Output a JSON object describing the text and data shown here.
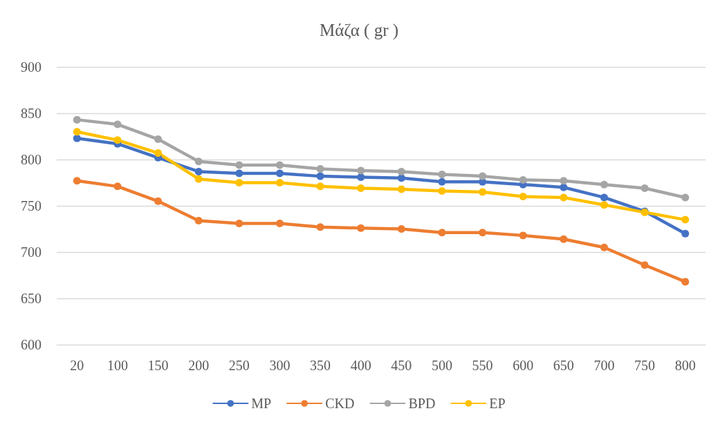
{
  "chart_data": {
    "type": "line",
    "title": "Μάζα ( gr )",
    "categories": [
      "20",
      "100",
      "150",
      "200",
      "250",
      "300",
      "350",
      "400",
      "450",
      "500",
      "550",
      "600",
      "650",
      "700",
      "750",
      "800"
    ],
    "series": [
      {
        "name": "MP",
        "color": "#4472c4",
        "values": [
          823,
          817,
          802,
          787,
          785,
          785,
          782,
          781,
          780,
          776,
          776,
          773,
          770,
          759,
          744,
          720
        ]
      },
      {
        "name": "CKD",
        "color": "#ed7d31",
        "values": [
          777,
          771,
          755,
          734,
          731,
          731,
          727,
          726,
          725,
          721,
          721,
          718,
          714,
          705,
          686,
          668
        ]
      },
      {
        "name": "BPD",
        "color": "#a5a5a5",
        "values": [
          843,
          838,
          822,
          798,
          794,
          794,
          790,
          788,
          787,
          784,
          782,
          778,
          777,
          773,
          769,
          759
        ]
      },
      {
        "name": "EP",
        "color": "#ffc000",
        "values": [
          830,
          821,
          807,
          779,
          775,
          775,
          771,
          769,
          768,
          766,
          765,
          760,
          759,
          751,
          743,
          735
        ]
      }
    ],
    "ylim": [
      600,
      900
    ],
    "yticks": [
      600,
      650,
      700,
      750,
      800,
      850,
      900
    ],
    "grid": "y",
    "legend": "bottom",
    "marker": "circle",
    "line_style": "solid"
  }
}
